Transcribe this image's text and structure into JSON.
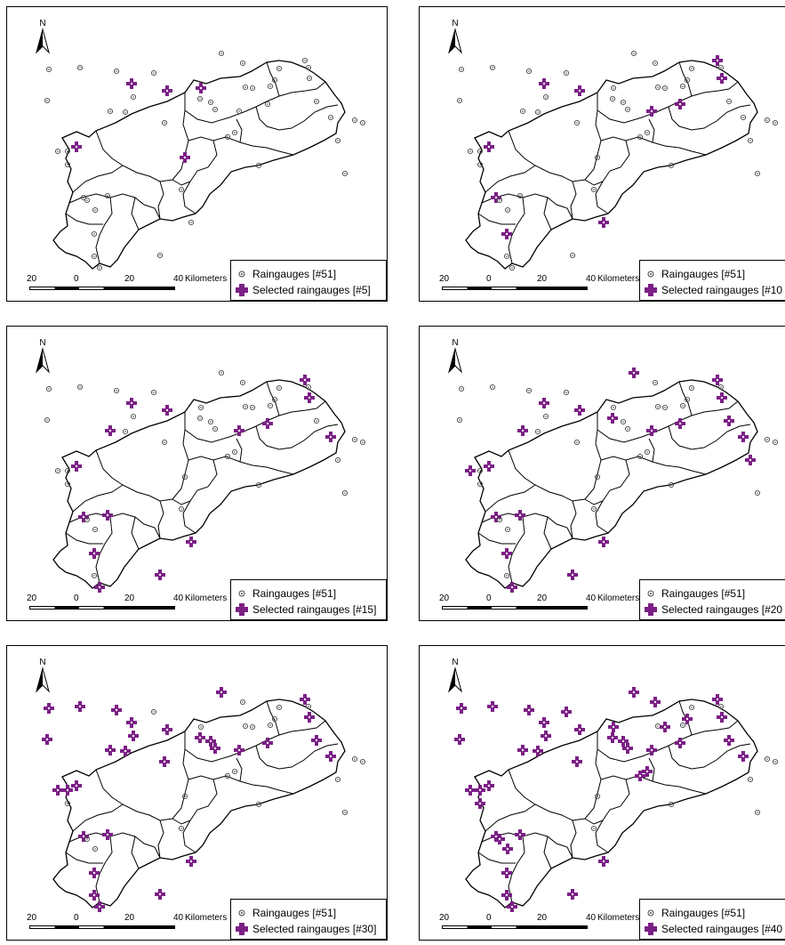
{
  "north_label": "N",
  "scale_labels": [
    "20",
    "0",
    "20",
    "40"
  ],
  "scale_unit": "Kilometers",
  "legend_gauges_label": "Raingauges [#51]",
  "colors": {
    "selected": "#7b1f85",
    "gauge": "#444444",
    "outline": "#000000"
  },
  "panels": [
    {
      "selected_label": "Selected raingauges [#5]",
      "selected_count": 5
    },
    {
      "selected_label": "Selected raingauges [#10",
      "selected_count": 10
    },
    {
      "selected_label": "Selected raingauges [#15]",
      "selected_count": 15
    },
    {
      "selected_label": "Selected raingauges [#20",
      "selected_count": 20
    },
    {
      "selected_label": "Selected raingauges [#30]",
      "selected_count": 30
    },
    {
      "selected_label": "Selected raingauges [#40",
      "selected_count": 40
    }
  ]
}
